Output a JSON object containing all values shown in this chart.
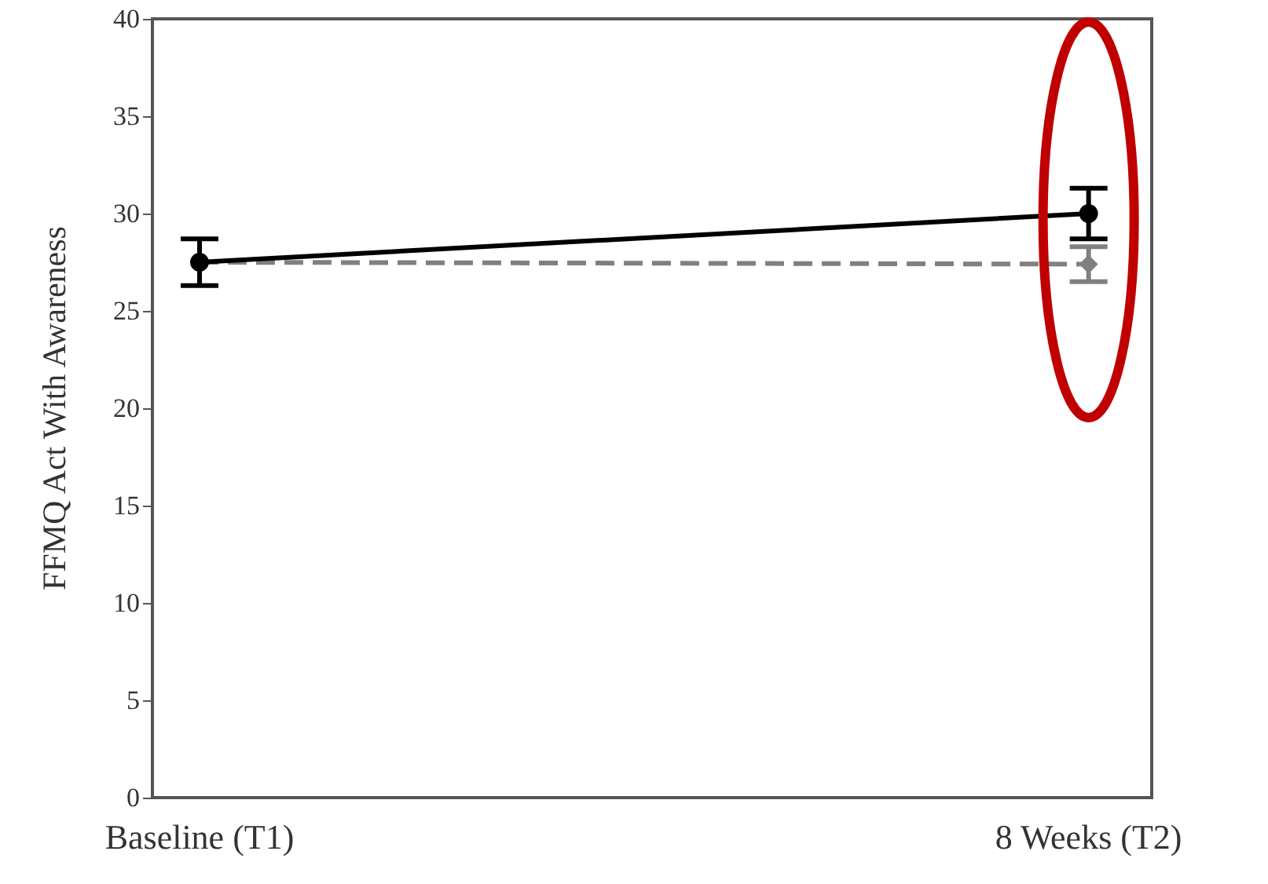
{
  "chart_data": {
    "type": "line",
    "ylabel": "FFMQ Act With Awareness",
    "categories": [
      "Baseline (T1)",
      "8 Weeks (T2)"
    ],
    "series": [
      {
        "color": "#000000",
        "values": [
          27.5,
          30
        ],
        "errors": [
          1.2,
          1.3
        ],
        "marker": "circle",
        "line_style": "solid"
      },
      {
        "color": "#808080",
        "values": [
          27.5,
          27.4
        ],
        "errors": [
          null,
          0.9
        ],
        "marker": "diamond",
        "line_style": "dashed"
      }
    ],
    "ylim": [
      0,
      40
    ],
    "yticks": [
      0,
      5,
      10,
      15,
      20,
      25,
      30,
      35,
      40
    ],
    "grid": false
  }
}
